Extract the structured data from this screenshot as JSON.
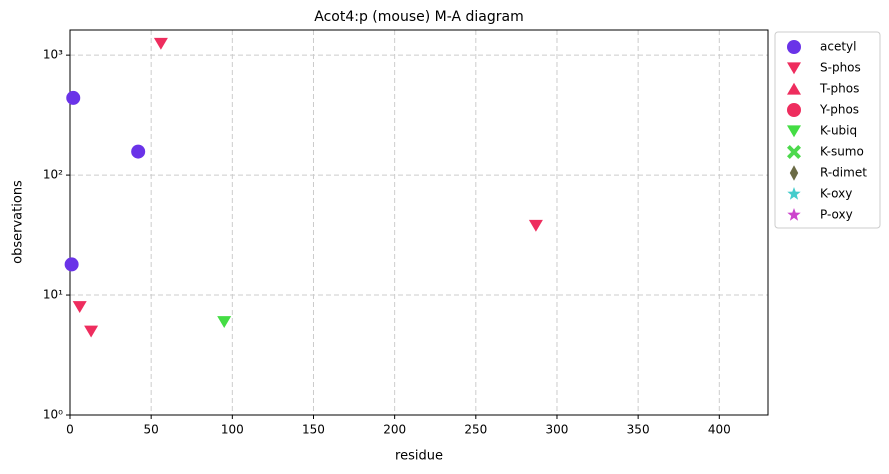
{
  "chart_data": {
    "type": "scatter",
    "title": "Acot4:p (mouse) M-A diagram",
    "xlabel": "residue",
    "ylabel": "observations",
    "xlim": [
      0,
      430
    ],
    "xticks": [
      0,
      50,
      100,
      150,
      200,
      250,
      300,
      350,
      400
    ],
    "ylim": [
      1,
      1620
    ],
    "yscale": "log",
    "yticks": [
      {
        "value": 1,
        "label": "10⁰"
      },
      {
        "value": 10,
        "label": "10¹"
      },
      {
        "value": 100,
        "label": "10²"
      },
      {
        "value": 1000,
        "label": "10³"
      }
    ],
    "grid": true,
    "legend": "outside right",
    "series": [
      {
        "name": "acetyl",
        "color": "#6a33e8",
        "marker": "circle",
        "x": [
          2,
          42,
          1
        ],
        "values": [
          440,
          157,
          18
        ]
      },
      {
        "name": "S-phos",
        "color": "#ee2d5e",
        "marker": "triangle-down",
        "x": [
          56,
          287,
          6,
          13
        ],
        "values": [
          1250,
          38,
          8,
          5
        ]
      },
      {
        "name": "T-phos",
        "color": "#ee2d5e",
        "marker": "triangle-up",
        "x": [],
        "values": []
      },
      {
        "name": "Y-phos",
        "color": "#ee2d5e",
        "marker": "circle",
        "x": [],
        "values": []
      },
      {
        "name": "K-ubiq",
        "color": "#44dd44",
        "marker": "triangle-down",
        "x": [
          95
        ],
        "values": [
          6
        ]
      },
      {
        "name": "K-sumo",
        "color": "#4cd94c",
        "marker": "x",
        "x": [],
        "values": []
      },
      {
        "name": "R-dimet",
        "color": "#6b6b45",
        "marker": "diamond",
        "x": [],
        "values": []
      },
      {
        "name": "K-oxy",
        "color": "#44cccc",
        "marker": "star",
        "x": [],
        "values": []
      },
      {
        "name": "P-oxy",
        "color": "#cc44cc",
        "marker": "star",
        "x": [],
        "values": []
      }
    ]
  }
}
